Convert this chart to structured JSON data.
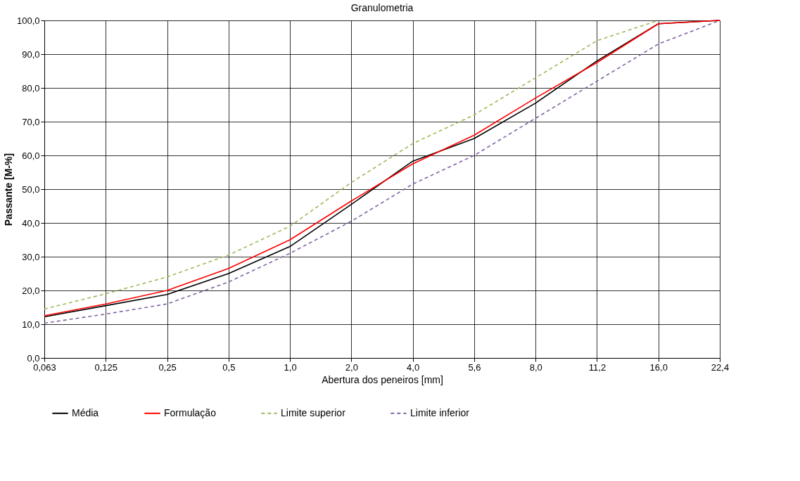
{
  "chart_data": {
    "type": "line",
    "title": "Granulometria",
    "xlabel": "Abertura dos peneiros [mm]",
    "ylabel": "Passante [M-%]",
    "categories": [
      "0,063",
      "0,125",
      "0,25",
      "0,5",
      "1,0",
      "2,0",
      "4,0",
      "5,6",
      "8,0",
      "11,2",
      "16,0",
      "22,4"
    ],
    "series": [
      {
        "name": "Média",
        "color": "#000000",
        "line_style": "solid",
        "values": [
          12.2,
          15.5,
          18.8,
          25.0,
          33.0,
          45.5,
          58.3,
          65.0,
          75.5,
          88.0,
          99.0,
          100.0
        ]
      },
      {
        "name": "Formulação",
        "color": "#ff0000",
        "line_style": "solid",
        "values": [
          12.5,
          16.0,
          20.0,
          26.5,
          35.0,
          46.5,
          57.5,
          66.0,
          77.0,
          87.5,
          99.0,
          100.0
        ]
      },
      {
        "name": "Limite superior",
        "color": "#9bbb59",
        "line_style": "dashed",
        "values": [
          14.5,
          19.0,
          24.0,
          30.5,
          39.0,
          52.0,
          63.5,
          72.0,
          83.0,
          94.0,
          100.0,
          null
        ]
      },
      {
        "name": "Limite inferior",
        "color": "#8064a2",
        "line_style": "dashed",
        "values": [
          10.3,
          13.0,
          16.0,
          22.5,
          31.0,
          40.5,
          51.5,
          60.0,
          71.0,
          82.0,
          93.0,
          100.0
        ]
      }
    ],
    "ylim": [
      0,
      100
    ],
    "yticks": [
      {
        "value": 0,
        "label": "0,0"
      },
      {
        "value": 10,
        "label": "10,0"
      },
      {
        "value": 20,
        "label": "20,0"
      },
      {
        "value": 30,
        "label": "30,0"
      },
      {
        "value": 40,
        "label": "40,0"
      },
      {
        "value": 50,
        "label": "50,0"
      },
      {
        "value": 60,
        "label": "60,0"
      },
      {
        "value": 70,
        "label": "70,0"
      },
      {
        "value": 80,
        "label": "80,0"
      },
      {
        "value": 90,
        "label": "90,0"
      },
      {
        "value": 100,
        "label": "100,0"
      }
    ],
    "grid": true,
    "legend": "bottom",
    "marker": "none"
  }
}
